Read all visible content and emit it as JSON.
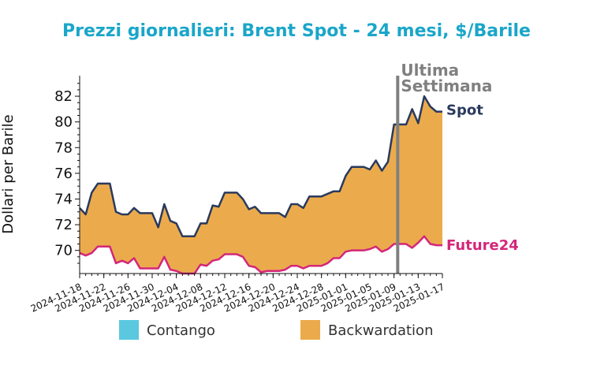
{
  "chart_data": {
    "type": "area",
    "title": "Prezzi giornalieri: Brent Spot - 24 mesi, $/Barile",
    "ylabel": "Dollari per Barile",
    "xlabel": "",
    "ylim": [
      68.2,
      83.6
    ],
    "yticks": [
      70,
      72,
      74,
      76,
      78,
      80,
      82
    ],
    "xticks": [
      "2024-11-18",
      "2024-11-22",
      "2024-11-26",
      "2024-11-30",
      "2024-12-04",
      "2024-12-08",
      "2024-12-12",
      "2024-12-16",
      "2024-12-20",
      "2024-12-24",
      "2024-12-28",
      "2025-01-01",
      "2025-01-05",
      "2025-01-09",
      "2025-01-13",
      "2025-01-17"
    ],
    "x": [
      "2024-11-18",
      "2024-11-19",
      "2024-11-20",
      "2024-11-21",
      "2024-11-22",
      "2024-11-23",
      "2024-11-24",
      "2024-11-25",
      "2024-11-26",
      "2024-11-27",
      "2024-11-28",
      "2024-11-29",
      "2024-11-30",
      "2024-12-01",
      "2024-12-02",
      "2024-12-03",
      "2024-12-04",
      "2024-12-05",
      "2024-12-06",
      "2024-12-07",
      "2024-12-08",
      "2024-12-09",
      "2024-12-10",
      "2024-12-11",
      "2024-12-12",
      "2024-12-13",
      "2024-12-14",
      "2024-12-15",
      "2024-12-16",
      "2024-12-17",
      "2024-12-18",
      "2024-12-19",
      "2024-12-20",
      "2024-12-21",
      "2024-12-22",
      "2024-12-23",
      "2024-12-24",
      "2024-12-25",
      "2024-12-26",
      "2024-12-27",
      "2024-12-28",
      "2024-12-29",
      "2024-12-30",
      "2024-12-31",
      "2025-01-01",
      "2025-01-02",
      "2025-01-03",
      "2025-01-04",
      "2025-01-05",
      "2025-01-06",
      "2025-01-07",
      "2025-01-08",
      "2025-01-09",
      "2025-01-10",
      "2025-01-11",
      "2025-01-12",
      "2025-01-13",
      "2025-01-14",
      "2025-01-15",
      "2025-01-16",
      "2025-01-17"
    ],
    "series": [
      {
        "name": "Spot",
        "color": "#2a3a5e",
        "values": [
          73.3,
          72.8,
          74.5,
          75.2,
          75.2,
          75.2,
          73.0,
          72.8,
          72.8,
          73.3,
          72.9,
          72.9,
          72.9,
          71.8,
          73.6,
          72.3,
          72.1,
          71.1,
          71.1,
          71.1,
          72.1,
          72.1,
          73.5,
          73.4,
          74.5,
          74.5,
          74.5,
          74.0,
          73.2,
          73.4,
          72.9,
          72.9,
          72.9,
          72.9,
          72.6,
          73.6,
          73.6,
          73.3,
          74.2,
          74.2,
          74.2,
          74.4,
          74.6,
          74.6,
          75.8,
          76.5,
          76.5,
          76.5,
          76.3,
          77.0,
          76.2,
          76.9,
          79.8,
          79.8,
          79.8,
          81.0,
          79.9,
          82.0,
          81.2,
          80.8,
          80.8
        ]
      },
      {
        "name": "Future24",
        "color": "#d4267a",
        "values": [
          69.8,
          69.6,
          69.8,
          70.3,
          70.3,
          70.3,
          69.0,
          69.2,
          69.0,
          69.4,
          68.6,
          68.6,
          68.6,
          68.6,
          69.5,
          68.5,
          68.4,
          68.2,
          68.2,
          68.2,
          68.9,
          68.8,
          69.2,
          69.3,
          69.7,
          69.7,
          69.7,
          69.5,
          68.8,
          68.7,
          68.3,
          68.4,
          68.4,
          68.4,
          68.5,
          68.8,
          68.8,
          68.6,
          68.8,
          68.8,
          68.8,
          69.0,
          69.4,
          69.4,
          69.9,
          70.0,
          70.0,
          70.0,
          70.1,
          70.3,
          69.9,
          70.1,
          70.5,
          70.5,
          70.5,
          70.2,
          70.6,
          71.1,
          70.5,
          70.4,
          70.4
        ]
      }
    ],
    "fill_colors": {
      "contango": "#5bc8e0",
      "backwardation": "#ebab4c"
    },
    "legend": {
      "placement": "bottom",
      "items": [
        {
          "label": "Contango",
          "color": "#5bc8e0"
        },
        {
          "label": "Backwardation",
          "color": "#ebab4c"
        }
      ]
    },
    "marker": {
      "date": "2025-01-10",
      "label_line1": "Ultima",
      "label_line2": "Settimana",
      "color": "#808080"
    },
    "grid": false
  }
}
